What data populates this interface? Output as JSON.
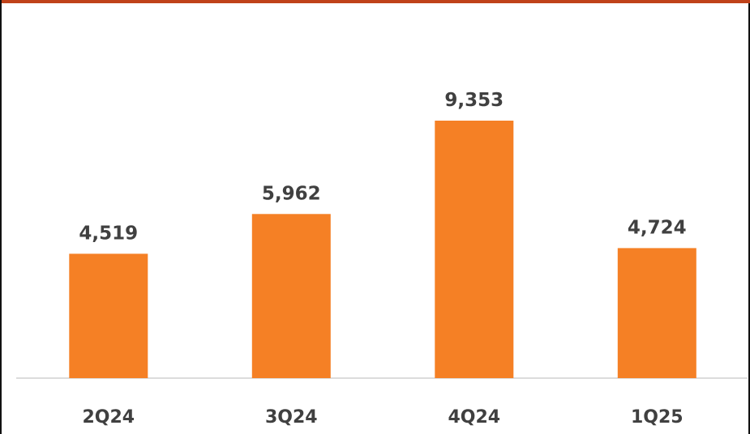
{
  "colors": {
    "bar": "#F58025",
    "top_rule": "#C0421A",
    "text": "#404040",
    "axis": "#D0D0D0"
  },
  "chart_data": {
    "type": "bar",
    "categories": [
      "2Q24",
      "3Q24",
      "4Q24",
      "1Q25"
    ],
    "values": [
      4519,
      5962,
      9353,
      4724
    ],
    "value_labels": [
      "4,519",
      "5,962",
      "9,353",
      "4,724"
    ],
    "title": "",
    "xlabel": "",
    "ylabel": "",
    "ylim": [
      0,
      10000
    ],
    "grid": false,
    "legend": "none"
  }
}
